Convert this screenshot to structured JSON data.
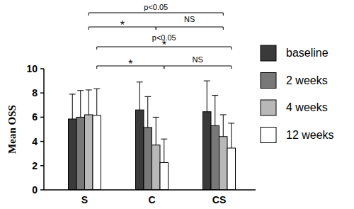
{
  "chart_data": {
    "type": "bar",
    "y_label": "Mean OSS",
    "categories": [
      "S",
      "C",
      "CS"
    ],
    "series": [
      {
        "name": "baseline",
        "color": "#3a3a3a",
        "values": [
          5.85,
          6.6,
          6.45
        ],
        "errors": [
          2.05,
          2.3,
          2.55
        ]
      },
      {
        "name": "2 weeks",
        "color": "#787878",
        "values": [
          6.0,
          5.15,
          5.3
        ],
        "errors": [
          2.2,
          2.55,
          2.5
        ]
      },
      {
        "name": "4 weeks",
        "color": "#b8b8b8",
        "values": [
          6.2,
          3.7,
          4.4
        ],
        "errors": [
          2.05,
          2.3,
          1.8
        ]
      },
      {
        "name": "12 weeks",
        "color": "#ffffff",
        "values": [
          6.15,
          2.25,
          3.45
        ],
        "errors": [
          2.2,
          1.95,
          2.05
        ]
      }
    ],
    "annotations": [
      "p<0.05",
      "*",
      "NS",
      "p<0.05",
      "*",
      "*",
      "NS"
    ],
    "ylim": [
      0,
      10
    ],
    "yticks": [
      0,
      2,
      4,
      6,
      8,
      10
    ],
    "grid": false,
    "legend": "right"
  }
}
